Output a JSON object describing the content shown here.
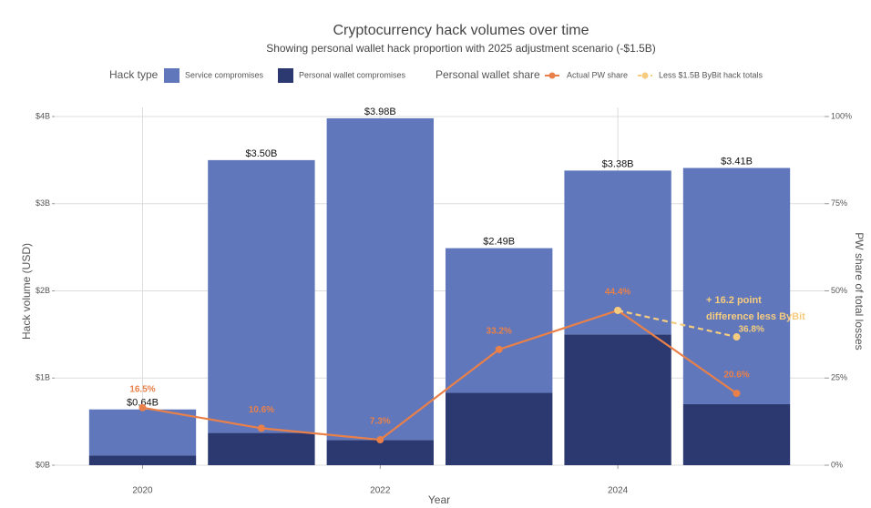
{
  "chart_data": {
    "type": "stacked_bar_line",
    "title": "Cryptocurrency hack volumes over time",
    "subtitle": "Showing personal wallet hack proportion with 2025 adjustment scenario (-$1.5B)",
    "x_label": "Year",
    "y_label": "Hack volume (USD)",
    "y2_label": "PW share of total losses",
    "bar_legend_title": "Hack type",
    "line_legend_title": "Personal wallet share",
    "x": [
      2020,
      2021,
      2022,
      2023,
      2024,
      2025
    ],
    "xlim": [
      2019.26,
      2025.74
    ],
    "xticks": [
      2020,
      2022,
      2024
    ],
    "ylim": [
      0,
      4
    ],
    "yticks": [
      {
        "value": 0,
        "label": "$0B"
      },
      {
        "value": 1,
        "label": "$1B"
      },
      {
        "value": 2,
        "label": "$2B"
      },
      {
        "value": 3,
        "label": "$3B"
      },
      {
        "value": 4,
        "label": "$4B"
      }
    ],
    "y2lim": [
      0,
      100
    ],
    "y2ticks": [
      {
        "value": 0,
        "label": "0%"
      },
      {
        "value": 25,
        "label": "25%"
      },
      {
        "value": 50,
        "label": "50%"
      },
      {
        "value": 75,
        "label": "75%"
      },
      {
        "value": 100,
        "label": "100%"
      }
    ],
    "grid": true,
    "bar_series": [
      {
        "name": "Personal wallet compromises",
        "color": "#2b3970",
        "values": [
          0.11,
          0.37,
          0.29,
          0.83,
          1.5,
          0.7
        ]
      },
      {
        "name": "Service compromises",
        "color": "#6078bb",
        "values": [
          0.53,
          3.13,
          3.69,
          1.66,
          1.88,
          2.71
        ]
      }
    ],
    "bar_totals": {
      "values": [
        0.64,
        3.5,
        3.98,
        2.49,
        3.38,
        3.41
      ],
      "value_labels": [
        "$0.64B",
        "$3.50B",
        "$3.98B",
        "$2.49B",
        "$3.38B",
        "$3.41B"
      ]
    },
    "series": [
      {
        "name": "Actual PW share",
        "color": "#ea8049",
        "axis": "y2",
        "x": [
          2020,
          2021,
          2022,
          2023,
          2024,
          2025
        ],
        "values": [
          16.5,
          10.6,
          7.3,
          33.2,
          44.4,
          20.6
        ],
        "value_labels": [
          "16.5%",
          "10.6%",
          "7.3%",
          "33.2%",
          "44.4%",
          "20.6%"
        ]
      },
      {
        "name": "Less $1.5B ByBit hack totals",
        "color": "#f6cc7f",
        "axis": "y2",
        "dashed": true,
        "x": [
          2024,
          2025
        ],
        "values": [
          44.4,
          36.8
        ],
        "value_labels": [
          null,
          "36.8%"
        ]
      }
    ],
    "annotation": [
      "+ 16.2 point",
      "difference less ByBit"
    ]
  }
}
